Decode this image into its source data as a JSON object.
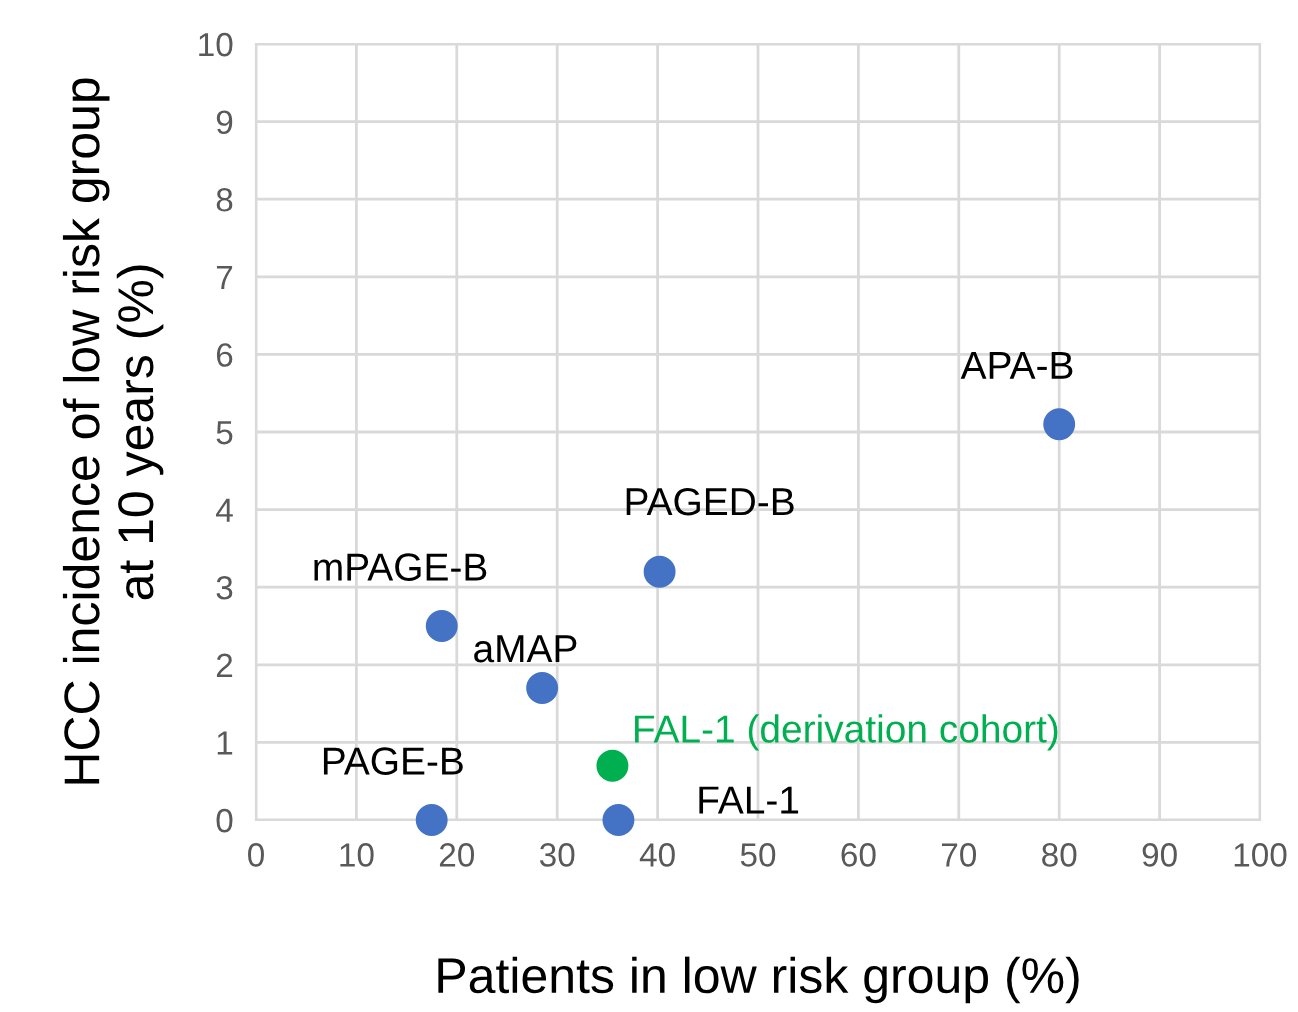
{
  "chart_data": {
    "type": "scatter",
    "xlabel": "Patients in low risk group (%)",
    "ylabel": "HCC incidence of low risk group\nat 10 years (%)",
    "xlim": [
      0,
      100
    ],
    "xticks": [
      0,
      10,
      20,
      30,
      40,
      50,
      60,
      70,
      80,
      90,
      100
    ],
    "ylim": [
      0,
      10
    ],
    "yticks": [
      0,
      1,
      2,
      3,
      4,
      5,
      6,
      7,
      8,
      9,
      10
    ],
    "grid": true,
    "legend": false,
    "marker": "circle",
    "series": [
      {
        "name": "APA-B",
        "color": "#4472c4",
        "x": [
          80
        ],
        "values": [
          5.1
        ]
      },
      {
        "name": "PAGED-B",
        "color": "#4472c4",
        "x": [
          40.2
        ],
        "values": [
          3.2
        ]
      },
      {
        "name": "mPAGE-B",
        "color": "#4472c4",
        "x": [
          18.5
        ],
        "values": [
          2.5
        ]
      },
      {
        "name": "aMAP",
        "color": "#4472c4",
        "x": [
          28.5
        ],
        "values": [
          1.7
        ]
      },
      {
        "name": "FAL-1 (derivation cohort)",
        "color": "#00b050",
        "x": [
          35.5
        ],
        "values": [
          0.7
        ]
      },
      {
        "name": "PAGE-B",
        "color": "#4472c4",
        "x": [
          17.5
        ],
        "values": [
          0
        ]
      },
      {
        "name": "FAL-1",
        "color": "#4472c4",
        "x": [
          36.1
        ],
        "values": [
          0
        ]
      }
    ]
  }
}
